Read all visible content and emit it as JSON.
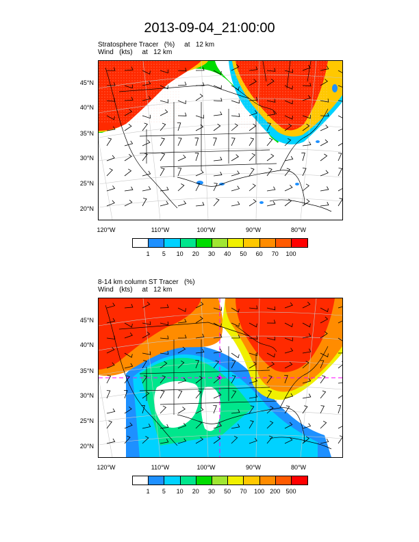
{
  "title": "2013-09-04_21:00:00",
  "panels": [
    {
      "line1": "Stratosphere Tracer   (%)     at   12 km",
      "line2": "Wind   (kts)     at   12 km",
      "lat_labels": [
        "45°N",
        "40°N",
        "35°N",
        "30°N",
        "25°N",
        "20°N"
      ],
      "lon_labels": [
        "120°W",
        "110°W",
        "100°W",
        "90°W",
        "80°W"
      ],
      "colorbar_labels": [
        "1",
        "5",
        "10",
        "20",
        "30",
        "40",
        "50",
        "60",
        "70",
        "100"
      ]
    },
    {
      "line1": "8-14 km column ST Tracer   (%)",
      "line2": "Wind   (kts)     at   12 km",
      "lat_labels": [
        "45°N",
        "40°N",
        "35°N",
        "30°N",
        "25°N",
        "20°N"
      ],
      "lon_labels": [
        "120°W",
        "110°W",
        "100°W",
        "90°W",
        "80°W"
      ],
      "colorbar_labels": [
        "1",
        "5",
        "10",
        "20",
        "30",
        "50",
        "70",
        "100",
        "200",
        "500"
      ]
    }
  ],
  "colorbar_colors": [
    "#ffffff",
    "#1e90ff",
    "#00d2ff",
    "#00e68c",
    "#00dc00",
    "#a0e632",
    "#f0f000",
    "#ffc800",
    "#ff8c00",
    "#ff5a00",
    "#ff0000"
  ]
}
